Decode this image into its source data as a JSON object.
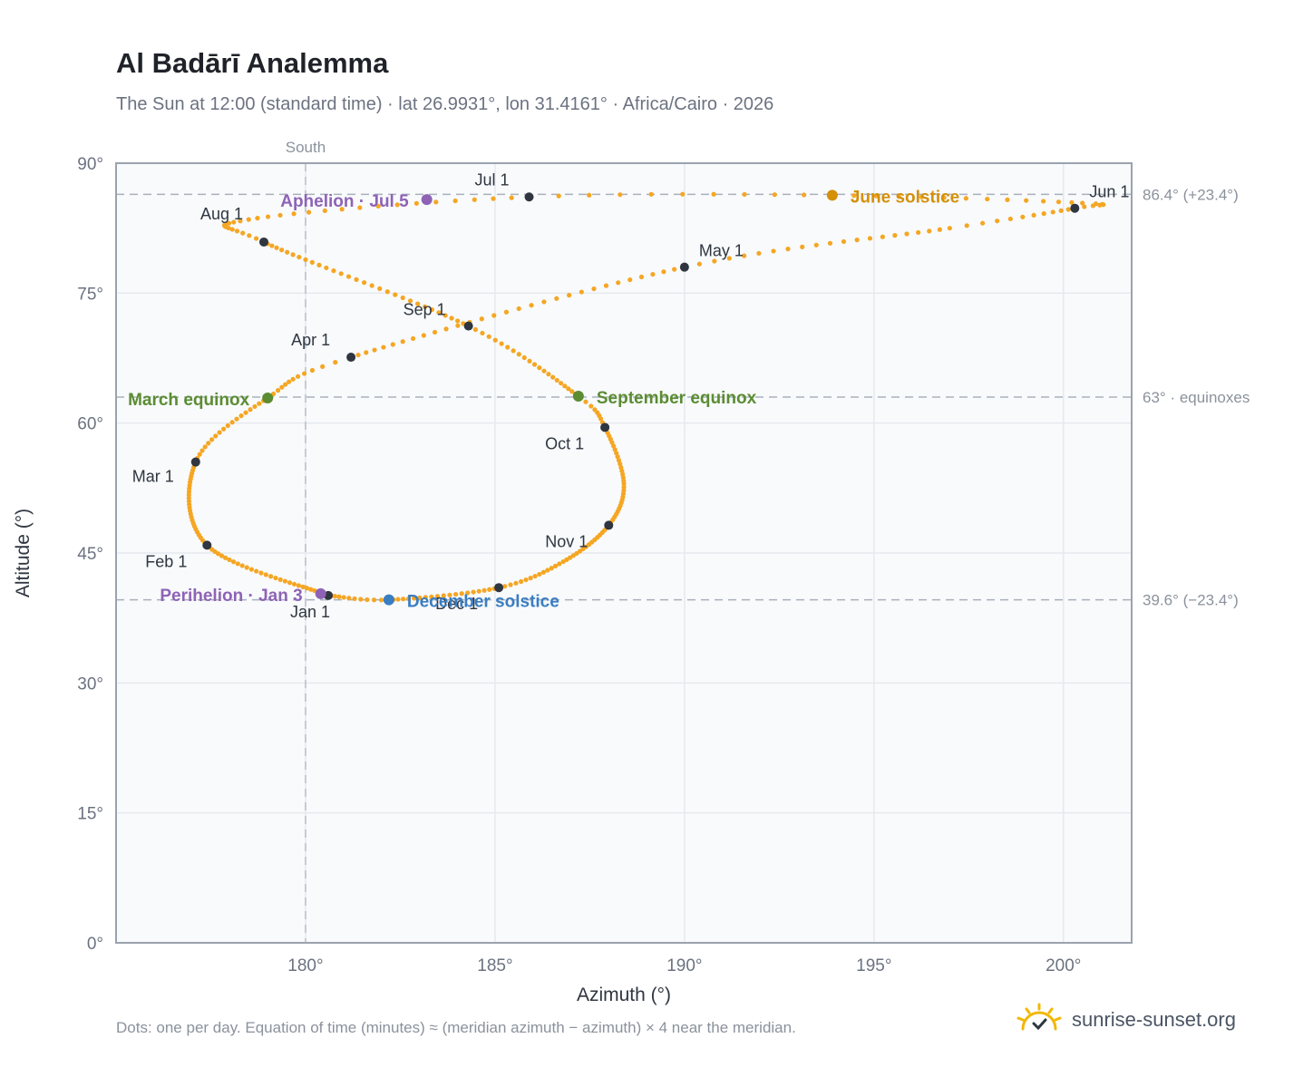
{
  "header": {
    "title": "Al Badārī Analemma",
    "subtitle": "The Sun at 12:00 (standard time) · lat 26.9931°, lon 31.4161° · Africa/Cairo · 2026"
  },
  "footer": {
    "note": "Dots: one per day. Equation of time (minutes) ≈ (meridian azimuth − azimuth) × 4 near the meridian.",
    "brand": "sunrise-sunset.org"
  },
  "chart_data": {
    "type": "scatter",
    "xlabel": "Azimuth (°)",
    "ylabel": "Altitude (°)",
    "xlim": [
      175,
      201.8
    ],
    "ylim": [
      0,
      90
    ],
    "x_ticks": [
      180,
      185,
      190,
      195,
      200
    ],
    "x_tick_labels": [
      "180°",
      "185°",
      "190°",
      "195°",
      "200°"
    ],
    "y_ticks": [
      0,
      15,
      30,
      45,
      60,
      75,
      90
    ],
    "y_tick_labels": [
      "0°",
      "15°",
      "30°",
      "45°",
      "60°",
      "75°",
      "90°"
    ],
    "grid": true,
    "south_marker": {
      "azimuth": 180,
      "label": "South"
    },
    "reference_lines": [
      {
        "altitude": 86.4,
        "label": "86.4° (+23.4°)"
      },
      {
        "altitude": 63.0,
        "label": "63° · equinoxes"
      },
      {
        "altitude": 39.6,
        "label": "39.6° (−23.4°)"
      }
    ],
    "analemma_anchors": [
      {
        "day": 0,
        "az": 180.6,
        "alt": 40.1
      },
      {
        "day": 31,
        "az": 177.4,
        "alt": 45.9
      },
      {
        "day": 59,
        "az": 177.1,
        "alt": 55.5
      },
      {
        "day": 78,
        "az": 179.0,
        "alt": 62.9
      },
      {
        "day": 90,
        "az": 181.2,
        "alt": 67.6
      },
      {
        "day": 120,
        "az": 190.0,
        "alt": 78.0
      },
      {
        "day": 140,
        "az": 197.0,
        "alt": 82.5
      },
      {
        "day": 151,
        "az": 200.3,
        "alt": 84.8
      },
      {
        "day": 158,
        "az": 200.5,
        "alt": 85.4
      },
      {
        "day": 171,
        "az": 193.9,
        "alt": 86.3
      },
      {
        "day": 181,
        "az": 185.9,
        "alt": 86.1
      },
      {
        "day": 198,
        "az": 178.5,
        "alt": 83.5
      },
      {
        "day": 212,
        "az": 178.9,
        "alt": 80.9
      },
      {
        "day": 243,
        "az": 184.3,
        "alt": 71.2
      },
      {
        "day": 265,
        "az": 187.2,
        "alt": 63.1
      },
      {
        "day": 273,
        "az": 187.9,
        "alt": 59.5
      },
      {
        "day": 290,
        "az": 188.4,
        "alt": 53.0
      },
      {
        "day": 304,
        "az": 188.0,
        "alt": 48.2
      },
      {
        "day": 320,
        "az": 186.8,
        "alt": 44.0
      },
      {
        "day": 334,
        "az": 185.1,
        "alt": 41.0
      },
      {
        "day": 354,
        "az": 182.2,
        "alt": 39.6
      },
      {
        "day": 365,
        "az": 180.6,
        "alt": 40.1
      }
    ],
    "month_markers": [
      {
        "label": "Jan 1",
        "az": 180.6,
        "alt": 40.1
      },
      {
        "label": "Feb 1",
        "az": 177.4,
        "alt": 45.9
      },
      {
        "label": "Mar 1",
        "az": 177.1,
        "alt": 55.5
      },
      {
        "label": "Apr 1",
        "az": 181.2,
        "alt": 67.6
      },
      {
        "label": "May 1",
        "az": 190.0,
        "alt": 78.0
      },
      {
        "label": "Jun 1",
        "az": 200.3,
        "alt": 84.8
      },
      {
        "label": "Jul 1",
        "az": 185.9,
        "alt": 86.1
      },
      {
        "label": "Aug 1",
        "az": 178.9,
        "alt": 80.9
      },
      {
        "label": "Sep 1",
        "az": 184.3,
        "alt": 71.2
      },
      {
        "label": "Oct 1",
        "az": 187.9,
        "alt": 59.5
      },
      {
        "label": "Nov 1",
        "az": 188.0,
        "alt": 48.2
      },
      {
        "label": "Dec 1",
        "az": 185.1,
        "alt": 41.0
      }
    ],
    "events": [
      {
        "label": "March equinox",
        "az": 179.0,
        "alt": 62.9,
        "color": "#5b8c32"
      },
      {
        "label": "June solstice",
        "az": 193.9,
        "alt": 86.3,
        "color": "#d4900a"
      },
      {
        "label": "Aphelion · Jul 5",
        "az": 183.2,
        "alt": 85.8,
        "color": "#8e63b5"
      },
      {
        "label": "September equinox",
        "az": 187.2,
        "alt": 63.1,
        "color": "#5b8c32"
      },
      {
        "label": "December solstice",
        "az": 182.2,
        "alt": 39.6,
        "color": "#3a7dc1"
      },
      {
        "label": "Perihelion · Jan 3",
        "az": 180.4,
        "alt": 40.3,
        "color": "#8e63b5"
      }
    ],
    "colors": {
      "analemma_dot": "#f5a623",
      "month_marker": "#2f3640",
      "grid": "#e6e9ee",
      "plot_background": "#f8fafc",
      "axis": "#9aa3ad"
    }
  }
}
